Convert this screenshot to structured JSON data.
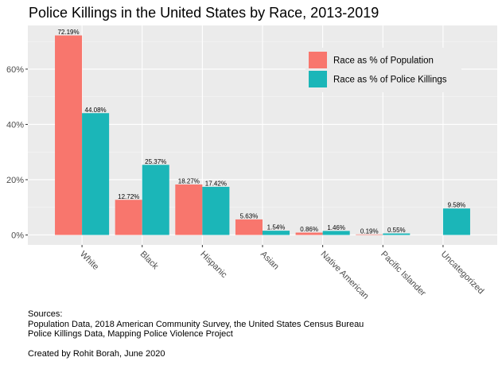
{
  "chart_data": {
    "type": "bar",
    "title": "Police Killings in the United States by Race, 2013-2019",
    "xlabel": "",
    "ylabel": "",
    "categories": [
      "White",
      "Black",
      "Hispanic",
      "Asian",
      "Native American",
      "Pacific Islander",
      "Uncategorized"
    ],
    "series": [
      {
        "name": "Race as % of Population",
        "color": "#f8766d",
        "values": [
          72.19,
          12.72,
          18.27,
          5.63,
          0.86,
          0.19,
          null
        ],
        "labels": [
          "72.19%",
          "12.72%",
          "18.27%",
          "5.63%",
          "0.86%",
          "0.19%",
          ""
        ]
      },
      {
        "name": "Race as % of Police Killings",
        "color": "#1bb6b8",
        "values": [
          44.08,
          25.37,
          17.42,
          1.54,
          1.46,
          0.55,
          9.58
        ],
        "labels": [
          "44.08%",
          "25.37%",
          "17.42%",
          "1.54%",
          "1.46%",
          "0.55%",
          "9.58%"
        ]
      }
    ],
    "yticks": [
      0,
      20,
      40,
      60
    ],
    "ytick_labels": [
      "0%",
      "20%",
      "40%",
      "60%"
    ],
    "ylim": [
      -3.6,
      75.8
    ],
    "grid": true,
    "legend_position": "top-right",
    "panel_color": "#ebebeb"
  },
  "footer": {
    "sources_heading": "Sources:",
    "source_population": "Population Data, 2018 American Community Survey, the United States Census Bureau",
    "source_killings": "Police Killings Data, Mapping Police Violence Project",
    "credit": "Created by Rohit Borah, June 2020"
  }
}
